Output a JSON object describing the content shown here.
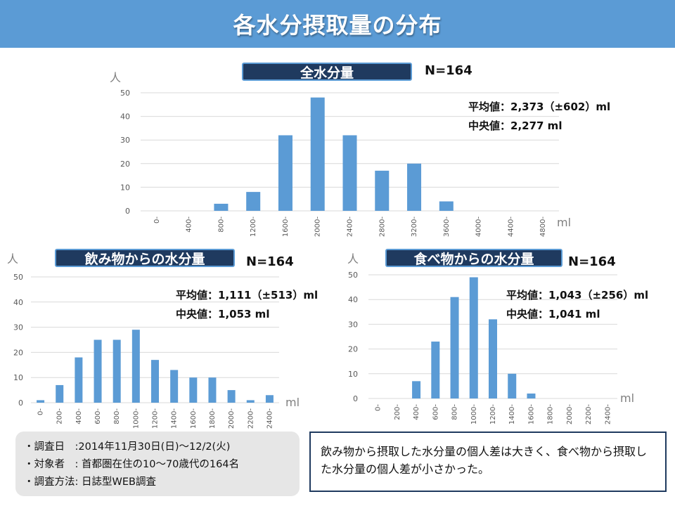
{
  "title": "各水分摂取量の分布",
  "colors": {
    "header": "#5b9bd5",
    "bar": "#5b9bd5",
    "pill": "#1f3a5f",
    "grid": "#d9d9d9"
  },
  "charts": {
    "total": {
      "label": "全水分量",
      "n": "N=164",
      "mean_label": "平均値：",
      "mean_value": "2,373（±602）ml",
      "median_label": "中央値：",
      "median_value": "2,277 ml"
    },
    "drink": {
      "label": "飲み物からの水分量",
      "n": "N=164",
      "mean_label": "平均値：",
      "mean_value": "1,111（±513）ml",
      "median_label": "中央値：",
      "median_value": "1,053 ml"
    },
    "food": {
      "label": "食べ物からの水分量",
      "n": "N=164",
      "mean_label": "平均値：",
      "mean_value": "1,043（±256）ml",
      "median_label": "中央値：",
      "median_value": "1,041 ml"
    }
  },
  "survey": {
    "date": "・調査日　:2014年11月30日(日)〜12/2(火)",
    "subjects": "・対象者　: 首都圏在住の10〜70歳代の164名",
    "method": "・調査方法: 日誌型WEB調査"
  },
  "conclusion": "飲み物から摂取した水分量の個人差は大きく、食べ物から摂取した水分量の個人差が小さかった。",
  "chart_data": [
    {
      "type": "bar",
      "title": "全水分量",
      "ylabel": "人",
      "xlabel": "ml",
      "categories": [
        "0-",
        "400-",
        "800-",
        "1200-",
        "1600-",
        "2000-",
        "2400-",
        "2800-",
        "3200-",
        "3600-",
        "4000-",
        "4400-",
        "4800-"
      ],
      "values": [
        0,
        0,
        3,
        8,
        32,
        48,
        32,
        17,
        20,
        4,
        0,
        0,
        0
      ],
      "ylim": [
        0,
        50
      ],
      "yticks": [
        0,
        10,
        20,
        30,
        40,
        50
      ],
      "grid": true
    },
    {
      "type": "bar",
      "title": "飲み物からの水分量",
      "ylabel": "人",
      "xlabel": "ml",
      "categories": [
        "0-",
        "200-",
        "400-",
        "600-",
        "800-",
        "1000-",
        "1200-",
        "1400-",
        "1600-",
        "1800-",
        "2000-",
        "2200-",
        "2400-"
      ],
      "values": [
        1,
        7,
        18,
        25,
        25,
        29,
        17,
        13,
        10,
        10,
        5,
        1,
        3
      ],
      "ylim": [
        0,
        50
      ],
      "yticks": [
        0,
        10,
        20,
        30,
        40,
        50
      ],
      "grid": true
    },
    {
      "type": "bar",
      "title": "食べ物からの水分量",
      "ylabel": "人",
      "xlabel": "ml",
      "categories": [
        "0-",
        "200-",
        "400-",
        "600-",
        "800-",
        "1000-",
        "1200-",
        "1400-",
        "1600-",
        "1800-",
        "2000-",
        "2200-",
        "2400-"
      ],
      "values": [
        0,
        0,
        7,
        23,
        41,
        49,
        32,
        10,
        2,
        0,
        0,
        0,
        0
      ],
      "ylim": [
        0,
        50
      ],
      "yticks": [
        0,
        10,
        20,
        30,
        40,
        50
      ],
      "grid": true
    }
  ]
}
